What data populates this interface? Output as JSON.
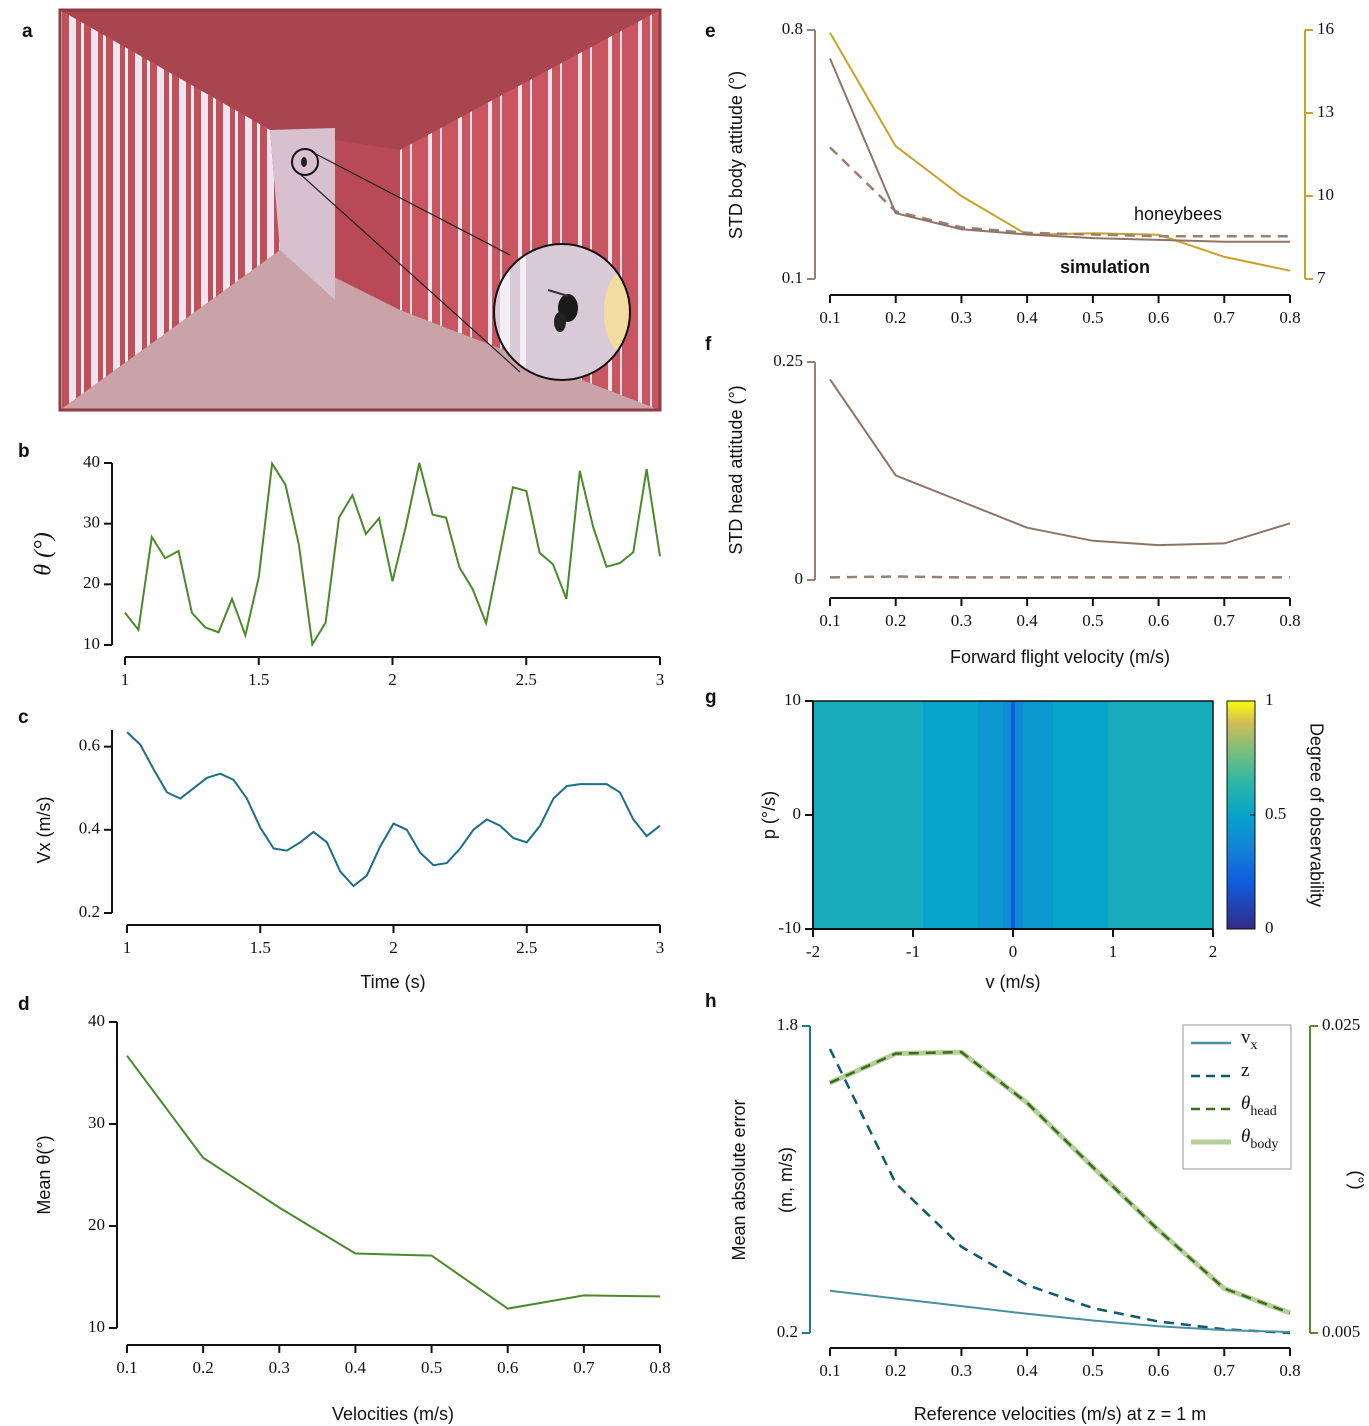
{
  "panel_labels": [
    "a",
    "b",
    "c",
    "d",
    "e",
    "f",
    "g",
    "h"
  ],
  "chart_data": [
    {
      "type": "line",
      "ylabel": "θ (°)",
      "xlim": [
        1,
        3
      ],
      "xticks": [
        1,
        1.5,
        2,
        2.5,
        3
      ],
      "ylim": [
        10,
        40
      ],
      "yticks": [
        10,
        20,
        30,
        40
      ],
      "x": [
        1,
        1.05,
        1.1,
        1.15,
        1.2,
        1.25,
        1.3,
        1.35,
        1.4,
        1.45,
        1.5,
        1.55,
        1.6,
        1.65,
        1.7,
        1.75,
        1.8,
        1.85,
        1.9,
        1.95,
        2,
        2.05,
        2.1,
        2.15,
        2.2,
        2.25,
        2.3,
        2.35,
        2.4,
        2.45,
        2.5,
        2.55,
        2.6,
        2.65,
        2.7,
        2.75,
        2.8,
        2.85,
        2.9,
        2.95,
        3
      ],
      "series": [
        {
          "color": "#4a8a2a",
          "values": [
            15.3,
            12.5,
            27.8,
            24.3,
            25.5,
            15.3,
            12.9,
            12.1,
            17.6,
            11.6,
            21.2,
            39.9,
            36.4,
            26.5,
            10.1,
            13.7,
            31,
            34.7,
            28.3,
            30.9,
            20.5,
            29.6,
            40,
            31.5,
            31,
            22.8,
            19.2,
            13.6,
            24.7,
            36,
            35.4,
            25.2,
            23.3,
            17.6,
            38.7,
            29.5,
            22.9,
            23.5,
            25.3,
            39,
            24.6
          ]
        }
      ]
    },
    {
      "type": "line",
      "xlabel": "Time (s)",
      "ylabel": "Vx (m/s)",
      "xlim": [
        1,
        3
      ],
      "xticks": [
        1,
        1.5,
        2,
        2.5,
        3
      ],
      "ylim": [
        0.2,
        0.64
      ],
      "yticks": [
        0.2,
        0.4,
        0.6
      ],
      "x": [
        1,
        1.05,
        1.1,
        1.15,
        1.2,
        1.25,
        1.3,
        1.35,
        1.4,
        1.45,
        1.5,
        1.55,
        1.6,
        1.65,
        1.7,
        1.75,
        1.8,
        1.85,
        1.9,
        1.95,
        2,
        2.05,
        2.1,
        2.15,
        2.2,
        2.25,
        2.3,
        2.35,
        2.4,
        2.45,
        2.5,
        2.55,
        2.6,
        2.65,
        2.7,
        2.75,
        2.8,
        2.85,
        2.9,
        2.95,
        3
      ],
      "series": [
        {
          "color": "#1d6e8a",
          "values": [
            0.635,
            0.605,
            0.545,
            0.49,
            0.475,
            0.5,
            0.525,
            0.535,
            0.52,
            0.475,
            0.405,
            0.355,
            0.35,
            0.37,
            0.395,
            0.37,
            0.3,
            0.265,
            0.29,
            0.36,
            0.415,
            0.4,
            0.345,
            0.315,
            0.32,
            0.355,
            0.4,
            0.425,
            0.41,
            0.38,
            0.37,
            0.41,
            0.475,
            0.505,
            0.51,
            0.51,
            0.51,
            0.49,
            0.425,
            0.385,
            0.41
          ]
        }
      ]
    },
    {
      "type": "line",
      "xlabel": "Velocities (m/s)",
      "ylabel": "Mean θ(°)",
      "xlim": [
        0.1,
        0.8
      ],
      "xticks": [
        0.1,
        0.2,
        0.3,
        0.4,
        0.5,
        0.6,
        0.7,
        0.8
      ],
      "ylim": [
        10,
        40
      ],
      "yticks": [
        10,
        20,
        30,
        40
      ],
      "x": [
        0.1,
        0.2,
        0.3,
        0.4,
        0.5,
        0.6,
        0.7,
        0.8
      ],
      "series": [
        {
          "color": "#4a8a2a",
          "values": [
            36.7,
            26.7,
            21.8,
            17.3,
            17.1,
            11.9,
            13.2,
            13.1
          ]
        }
      ]
    },
    {
      "type": "line",
      "ylabel": "STD body attitude (°)",
      "xlim": [
        0.1,
        0.8
      ],
      "xticks": [
        0.1,
        0.2,
        0.3,
        0.4,
        0.5,
        0.6,
        0.7,
        0.8
      ],
      "ylim": [
        0.1,
        0.8
      ],
      "yticks": [
        0.1,
        0.8
      ],
      "y2lim": [
        7,
        16
      ],
      "y2ticks": [
        7,
        10,
        13,
        16
      ],
      "ycolor": "#9a8070",
      "y2color": "#c9a227",
      "x": [
        0.1,
        0.2,
        0.3,
        0.4,
        0.5,
        0.6,
        0.7,
        0.8
      ],
      "series": [
        {
          "name": "simulation",
          "color": "#8f7466",
          "values": [
            0.72,
            0.285,
            0.24,
            0.225,
            0.215,
            0.21,
            0.205,
            0.205
          ]
        },
        {
          "color": "#9a8070",
          "style": "dashed",
          "values": [
            0.47,
            0.29,
            0.245,
            0.23,
            0.225,
            0.22,
            0.22,
            0.22
          ]
        },
        {
          "name": "honeybees",
          "color": "#c9a227",
          "axis": "y2",
          "values": [
            15.9,
            11.8,
            10.0,
            8.6,
            8.65,
            8.6,
            7.8,
            7.3
          ]
        }
      ]
    },
    {
      "type": "line",
      "xlabel": "Forward flight velocity (m/s)",
      "ylabel": "STD head attitude (°)",
      "xlim": [
        0.1,
        0.8
      ],
      "xticks": [
        0.1,
        0.2,
        0.3,
        0.4,
        0.5,
        0.6,
        0.7,
        0.8
      ],
      "ylim": [
        0,
        0.25
      ],
      "yticks": [
        0,
        0.25
      ],
      "ycolor": "#9a8070",
      "x": [
        0.1,
        0.2,
        0.3,
        0.4,
        0.5,
        0.6,
        0.7,
        0.8
      ],
      "series": [
        {
          "color": "#8f7466",
          "values": [
            0.23,
            0.12,
            0.09,
            0.06,
            0.045,
            0.04,
            0.042,
            0.065
          ]
        },
        {
          "color": "#9a8070",
          "style": "dashed",
          "values": [
            0.003,
            0.004,
            0.003,
            0.003,
            0.003,
            0.003,
            0.003,
            0.003
          ]
        }
      ]
    },
    {
      "type": "heatmap",
      "xlabel": "v (m/s)",
      "ylabel": "p (°/s)",
      "colorbar_label": "Degree of observability",
      "xlim": [
        -2,
        2
      ],
      "xticks": [
        -2,
        -1,
        0,
        1,
        2
      ],
      "ylim": [
        -10,
        10
      ],
      "yticks": [
        -10,
        0,
        10
      ],
      "clim": [
        0,
        1
      ],
      "cticks": [
        0,
        0.5,
        1
      ],
      "x_edges": [
        -2,
        -0.9,
        -0.35,
        -0.1,
        -0.02,
        0.02,
        0.1,
        0.4,
        0.95,
        2
      ],
      "values": [
        0.56,
        0.5,
        0.45,
        0.4,
        0.2,
        0.4,
        0.45,
        0.5,
        0.56
      ]
    },
    {
      "type": "line",
      "xlabel": "Reference velocities (m/s) at z = 1 m",
      "ylabel": "Mean absolute error",
      "ylabel_unit": "(m, m/s)",
      "y2label": "(°)",
      "xlim": [
        0.1,
        0.8
      ],
      "xticks": [
        0.1,
        0.2,
        0.3,
        0.4,
        0.5,
        0.6,
        0.7,
        0.8
      ],
      "ylim": [
        0.2,
        1.8
      ],
      "yticks": [
        0.2,
        1.8
      ],
      "y2lim": [
        0.005,
        0.025
      ],
      "y2ticks": [
        0.005,
        0.025
      ],
      "ycolor": "#1e7a8c",
      "y2color": "#5a8a2a",
      "x": [
        0.1,
        0.2,
        0.3,
        0.4,
        0.5,
        0.6,
        0.7,
        0.8
      ],
      "series": [
        {
          "name": "v",
          "name_sub": "x",
          "color": "#4a8fa3",
          "values": [
            0.42,
            0.38,
            0.34,
            0.3,
            0.265,
            0.235,
            0.215,
            0.205
          ]
        },
        {
          "name": "z",
          "color": "#0f5a6e",
          "style": "dashed",
          "values": [
            1.68,
            0.98,
            0.65,
            0.45,
            0.33,
            0.26,
            0.22,
            0.2
          ]
        },
        {
          "name": "θ",
          "name_sub": "head",
          "color": "#3a6e1e",
          "style": "dashed",
          "axis": "y2",
          "values": [
            0.0213,
            0.0232,
            0.0233,
            0.02,
            0.0158,
            0.0117,
            0.0079,
            0.0063
          ]
        },
        {
          "name": "θ",
          "name_sub": "body",
          "color": "#b7cf9a",
          "style": "thick",
          "axis": "y2",
          "values": [
            0.0213,
            0.0232,
            0.0233,
            0.02,
            0.0158,
            0.0117,
            0.0079,
            0.0063
          ]
        }
      ]
    }
  ]
}
